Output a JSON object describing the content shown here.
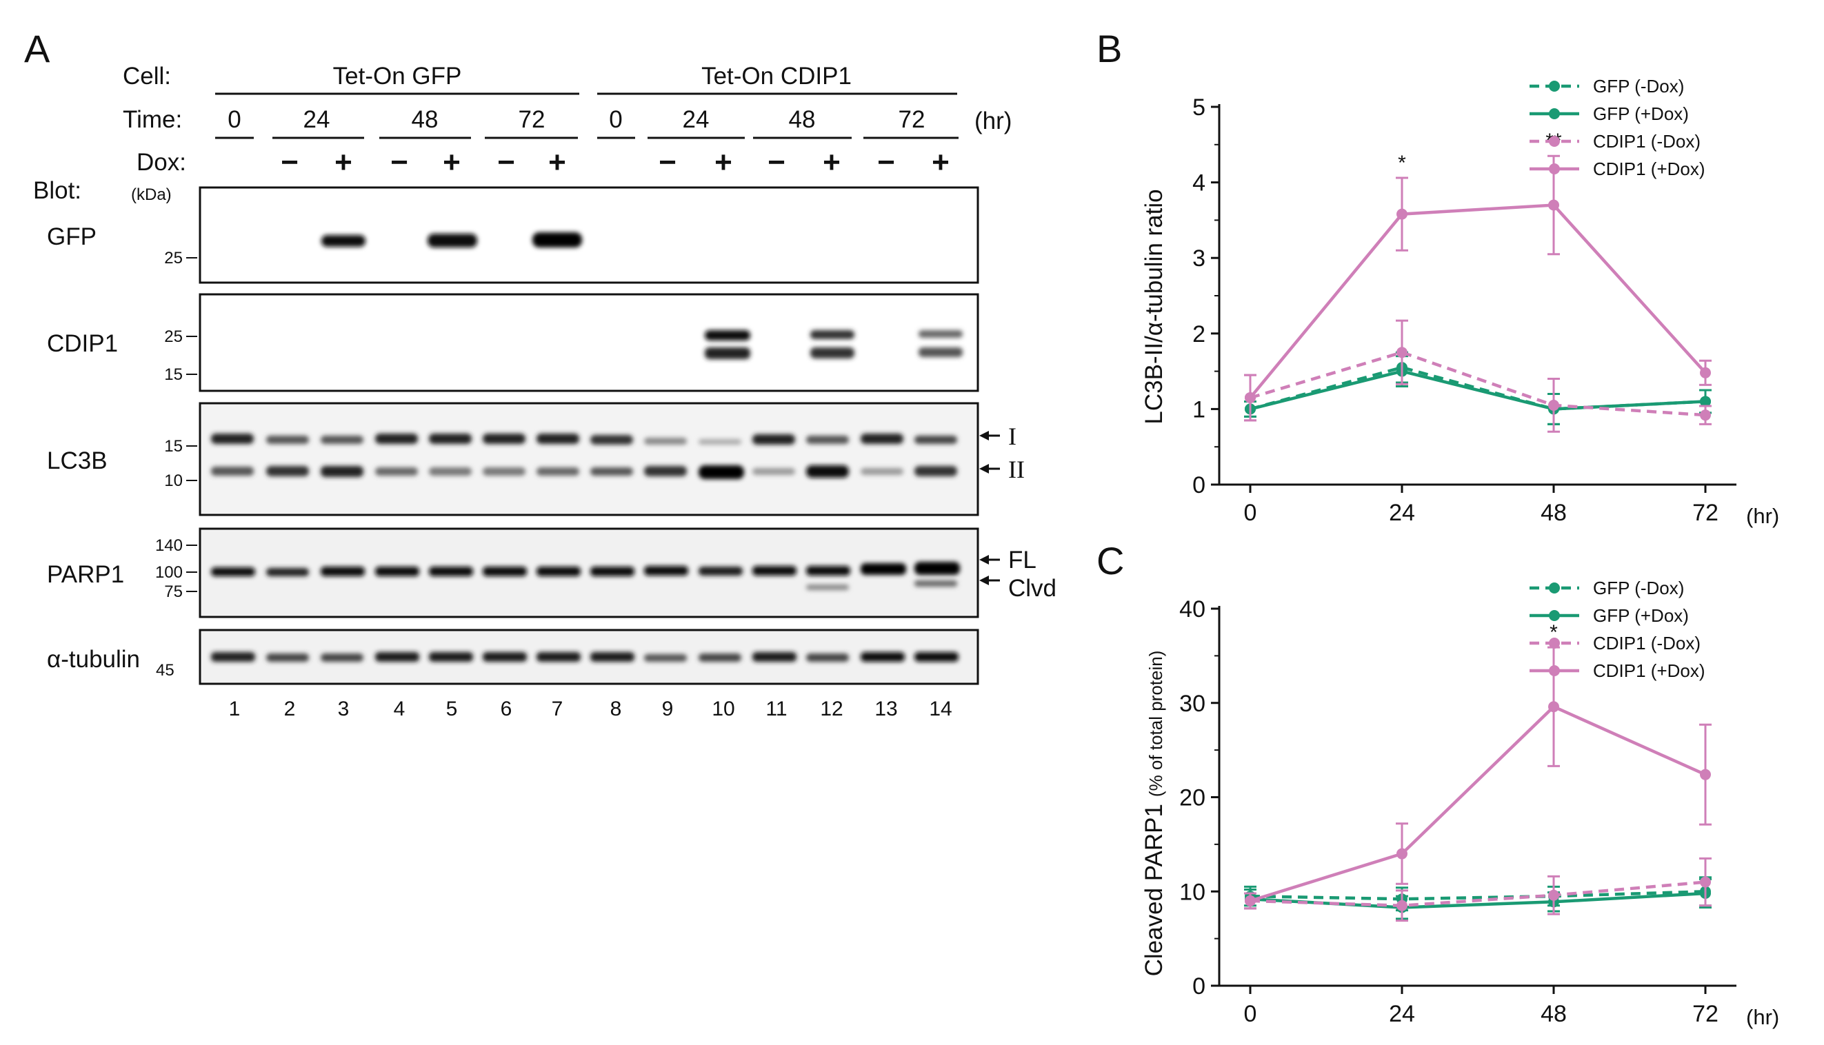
{
  "panels": {
    "a": "A",
    "b": "B",
    "c": "C"
  },
  "blot_header": {
    "cell_label": "Cell:",
    "time_label": "Time:",
    "dox_label": "Dox:",
    "blot_label": "Blot:",
    "kda_label": "(kDa)",
    "hr_unit": "(hr)",
    "groups": [
      "Tet-On GFP",
      "Tet-On CDIP1"
    ],
    "times": [
      "0",
      "24",
      "48",
      "72",
      "0",
      "24",
      "48",
      "72"
    ],
    "dox_signs": [
      "−",
      "+",
      "−",
      "+",
      "−",
      "+",
      "−",
      "+",
      "−",
      "+",
      "−",
      "+"
    ]
  },
  "blots": [
    {
      "protein": "GFP",
      "mw": [
        "25"
      ],
      "arrows": []
    },
    {
      "protein": "CDIP1",
      "mw": [
        "25",
        "15"
      ],
      "arrows": []
    },
    {
      "protein": "LC3B",
      "mw": [
        "15",
        "10"
      ],
      "arrows": [
        "I",
        "II"
      ]
    },
    {
      "protein": "PARP1",
      "mw": [
        "140",
        "100",
        "75"
      ],
      "arrows": [
        "FL",
        "Clvd"
      ]
    },
    {
      "protein": "α-tubulin",
      "mw": [
        "45"
      ],
      "arrows": []
    }
  ],
  "lane_numbers": [
    "1",
    "2",
    "3",
    "4",
    "5",
    "6",
    "7",
    "8",
    "9",
    "10",
    "11",
    "12",
    "13",
    "14"
  ],
  "colors": {
    "green": "#1a9a73",
    "pink": "#cf7fb8",
    "ink": "#111111"
  },
  "chart_data": [
    {
      "type": "line",
      "panel": "B",
      "title": "",
      "xlabel": "(hr)",
      "ylabel": "LC3B-II/α-tubulin ratio",
      "x": [
        0,
        24,
        48,
        72
      ],
      "xticks": [
        "0",
        "24",
        "48",
        "72"
      ],
      "ylim": [
        0,
        5
      ],
      "yticks": [
        "0",
        "1",
        "2",
        "3",
        "4",
        "5"
      ],
      "legend_position": "top-right",
      "series": [
        {
          "name": "GFP (-Dox)",
          "style": "dashed",
          "color": "green",
          "values": [
            1.0,
            1.55,
            1.0,
            1.1
          ],
          "errors": [
            0.1,
            0.2,
            0.2,
            0.15
          ]
        },
        {
          "name": "GFP (+Dox)",
          "style": "solid",
          "color": "green",
          "values": [
            1.0,
            1.5,
            1.0,
            1.1
          ],
          "errors": [
            0.1,
            0.2,
            0.2,
            0.15
          ]
        },
        {
          "name": "CDIP1 (-Dox)",
          "style": "dashed",
          "color": "pink",
          "values": [
            1.15,
            1.75,
            1.05,
            0.92
          ],
          "errors": [
            0.3,
            0.42,
            0.35,
            0.12
          ]
        },
        {
          "name": "CDIP1 (+Dox)",
          "style": "solid",
          "color": "pink",
          "values": [
            1.15,
            3.58,
            3.7,
            1.48
          ],
          "errors": [
            0.3,
            0.48,
            0.65,
            0.16
          ]
        }
      ],
      "annotations": [
        {
          "x": 24,
          "text": "*"
        },
        {
          "x": 48,
          "text": "**"
        }
      ]
    },
    {
      "type": "line",
      "panel": "C",
      "title": "",
      "xlabel": "(hr)",
      "ylabel": "Cleaved PARP1",
      "ylabel_sub": "(% of total protein)",
      "x": [
        0,
        24,
        48,
        72
      ],
      "xticks": [
        "0",
        "24",
        "48",
        "72"
      ],
      "ylim": [
        0,
        40
      ],
      "yticks": [
        "0",
        "10",
        "20",
        "30",
        "40"
      ],
      "legend_position": "top-right",
      "series": [
        {
          "name": "GFP (-Dox)",
          "style": "dashed",
          "color": "green",
          "values": [
            9.5,
            9.2,
            9.5,
            10.0
          ],
          "errors": [
            1.0,
            1.2,
            1.0,
            1.5
          ]
        },
        {
          "name": "GFP (+Dox)",
          "style": "solid",
          "color": "green",
          "values": [
            9.2,
            8.3,
            8.9,
            9.8
          ],
          "errors": [
            1.0,
            1.2,
            1.0,
            1.5
          ]
        },
        {
          "name": "CDIP1 (-Dox)",
          "style": "dashed",
          "color": "pink",
          "values": [
            9.0,
            8.5,
            9.6,
            11.0
          ],
          "errors": [
            0.8,
            1.6,
            2.0,
            2.5
          ]
        },
        {
          "name": "CDIP1 (+Dox)",
          "style": "solid",
          "color": "pink",
          "values": [
            9.0,
            14.0,
            29.6,
            22.4
          ],
          "errors": [
            0.8,
            3.2,
            6.3,
            5.3
          ]
        }
      ],
      "annotations": [
        {
          "x": 48,
          "text": "*"
        }
      ]
    }
  ]
}
